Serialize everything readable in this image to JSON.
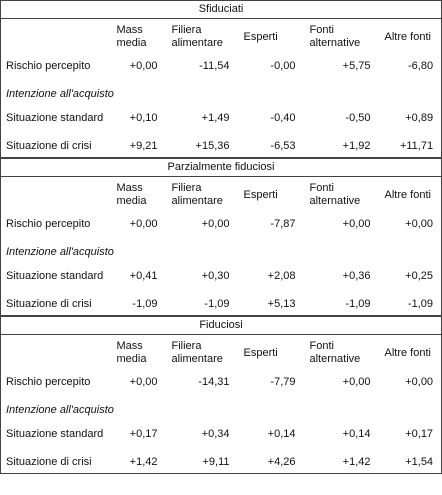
{
  "columns": [
    "Mass media",
    "Filiera alimentare",
    "Esperti",
    "Fonti alternative",
    "Altre fonti"
  ],
  "sections": [
    {
      "title": "Sfiduciati",
      "subheading": "Intenzione all'acquisto",
      "rows": [
        {
          "label": "Rischio percepito",
          "values": [
            "+0,00",
            "-11,54",
            "-0,00",
            "+5,75",
            "-6,80"
          ]
        },
        {
          "label": "Situazione standard",
          "values": [
            "+0,10",
            "+1,49",
            "-0,40",
            "-0,50",
            "+0,89"
          ]
        },
        {
          "label": "Situazione di crisi",
          "values": [
            "+9,21",
            "+15,36",
            "-6,53",
            "+1,92",
            "+11,71"
          ]
        }
      ]
    },
    {
      "title": "Parzialmente fiduciosi",
      "subheading": "Intenzione all'acquisto",
      "rows": [
        {
          "label": "Rischio percepito",
          "values": [
            "+0,00",
            "+0,00",
            "-7,87",
            "+0,00",
            "+0,00"
          ]
        },
        {
          "label": "Situazione standard",
          "values": [
            "+0,41",
            "+0,30",
            "+2,08",
            "+0,36",
            "+0,25"
          ]
        },
        {
          "label": "Situazione di crisi",
          "values": [
            "-1,09",
            "-1,09",
            "+5,13",
            "-1,09",
            "-1,09"
          ]
        }
      ]
    },
    {
      "title": "Fiduciosi",
      "subheading": "Intenzione all'acquisto",
      "rows": [
        {
          "label": "Rischio percepito",
          "values": [
            "+0,00",
            "-14,31",
            "-7,79",
            "+0,00",
            "+0,00"
          ]
        },
        {
          "label": "Situazione standard",
          "values": [
            "+0,17",
            "+0,34",
            "+0,14",
            "+0,14",
            "+0,17"
          ]
        },
        {
          "label": "Situazione di crisi",
          "values": [
            "+1,42",
            "+9,11",
            "+4,26",
            "+1,42",
            "+1,54"
          ]
        }
      ]
    }
  ]
}
